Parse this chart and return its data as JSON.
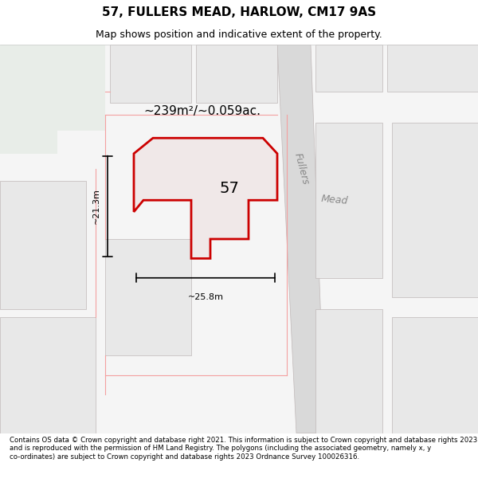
{
  "title": "57, FULLERS MEAD, HARLOW, CM17 9AS",
  "subtitle": "Map shows position and indicative extent of the property.",
  "area_label": "~239m²/~0.059ac.",
  "plot_number": "57",
  "width_label": "~25.8m",
  "height_label": "~21.3m",
  "street_label_fullers": "Fullers",
  "street_label_mead": "Mead",
  "footer_text": "Contains OS data © Crown copyright and database right 2021. This information is subject to Crown copyright and database rights 2023 and is reproduced with the permission of HM Land Registry. The polygons (including the associated geometry, namely x, y co-ordinates) are subject to Crown copyright and database rights 2023 Ordnance Survey 100026316.",
  "bg_color": "#f5f5f5",
  "map_bg": "#f0eeee",
  "plot_fill": "#e8e8e8",
  "plot_outline": "#cc0000",
  "road_fill": "#d9d9d9",
  "building_fill": "#e0e0e0",
  "green_fill": "#e8ede8",
  "pink_line": "#f4a0a0",
  "gray_line": "#c0b8b8"
}
